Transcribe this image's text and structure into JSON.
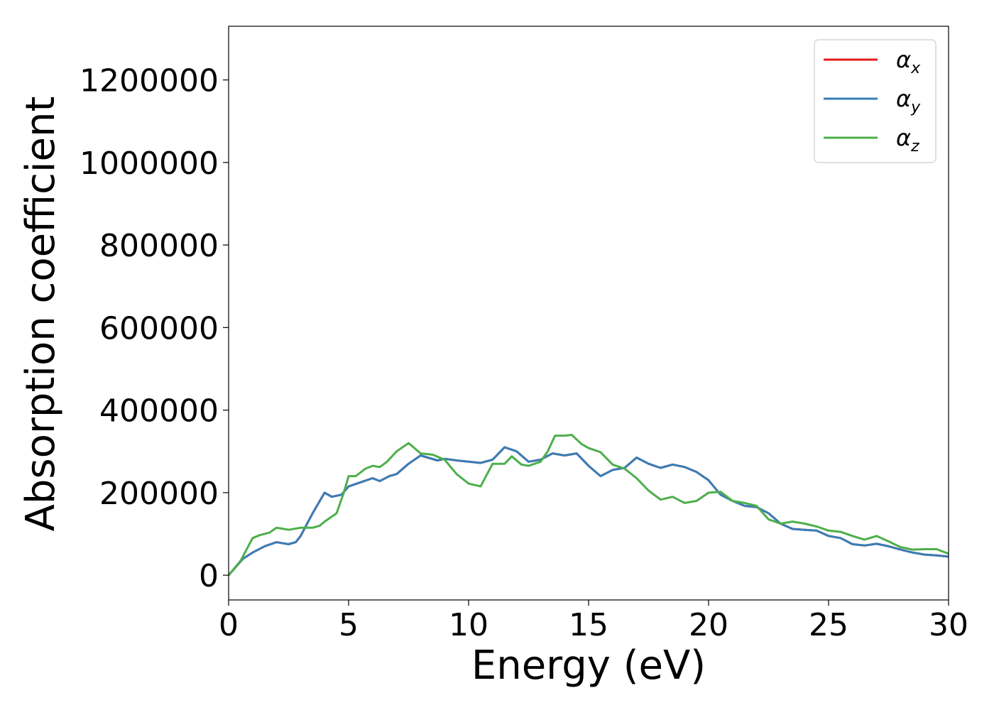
{
  "chart_data": {
    "type": "line",
    "xlabel": "Energy (eV)",
    "ylabel": "Absorption coefficient",
    "xlim": [
      0,
      30
    ],
    "ylim": [
      -60000,
      1330000
    ],
    "xticks": [
      0,
      5,
      10,
      15,
      20,
      25,
      30
    ],
    "yticks": [
      0,
      200000,
      400000,
      600000,
      800000,
      1000000,
      1200000
    ],
    "xtick_labels": [
      "0",
      "5",
      "10",
      "15",
      "20",
      "25",
      "30"
    ],
    "ytick_labels": [
      "0",
      "200000",
      "400000",
      "600000",
      "800000",
      "1000000",
      "1200000"
    ],
    "grid": false,
    "legend_position": "top-right",
    "series": [
      {
        "name": "αx",
        "symbol": "α",
        "sub": "x",
        "color": "#e41a1c",
        "x": [
          0,
          0.3,
          0.6,
          1.0,
          1.5,
          2.0,
          2.2,
          2.5,
          2.8,
          3.0,
          3.5,
          4.0,
          4.3,
          4.7,
          5.0,
          5.5,
          6.0,
          6.3,
          6.7,
          7.0,
          7.5,
          8.0,
          8.3,
          8.7,
          9.0,
          9.5,
          10.0,
          10.5,
          11.0,
          11.5,
          12.0,
          12.5,
          13.0,
          13.5,
          14.0,
          14.5,
          15.0,
          15.5,
          16.0,
          16.5,
          17.0,
          17.5,
          18.0,
          18.5,
          19.0,
          19.5,
          20.0,
          20.5,
          21.0,
          21.5,
          22.0,
          22.5,
          23.0,
          23.5,
          24.0,
          24.5,
          25.0,
          25.5,
          26.0,
          26.5,
          27.0,
          27.5,
          28.0,
          28.5,
          29.0,
          29.5,
          30.0
        ],
        "y": [
          0,
          20000,
          40000,
          55000,
          70000,
          80000,
          78000,
          75000,
          80000,
          95000,
          150000,
          200000,
          190000,
          195000,
          215000,
          225000,
          235000,
          228000,
          240000,
          245000,
          270000,
          290000,
          285000,
          278000,
          282000,
          278000,
          275000,
          272000,
          280000,
          310000,
          300000,
          275000,
          280000,
          295000,
          290000,
          295000,
          265000,
          240000,
          255000,
          260000,
          285000,
          270000,
          260000,
          268000,
          262000,
          250000,
          230000,
          195000,
          180000,
          168000,
          165000,
          150000,
          125000,
          112000,
          110000,
          108000,
          95000,
          90000,
          75000,
          72000,
          76000,
          70000,
          62000,
          55000,
          50000,
          48000,
          45000
        ]
      },
      {
        "name": "αy",
        "symbol": "α",
        "sub": "y",
        "color": "#377eb8",
        "x": [
          0,
          0.3,
          0.6,
          1.0,
          1.5,
          2.0,
          2.2,
          2.5,
          2.8,
          3.0,
          3.5,
          4.0,
          4.3,
          4.7,
          5.0,
          5.5,
          6.0,
          6.3,
          6.7,
          7.0,
          7.5,
          8.0,
          8.3,
          8.7,
          9.0,
          9.5,
          10.0,
          10.5,
          11.0,
          11.5,
          12.0,
          12.5,
          13.0,
          13.5,
          14.0,
          14.5,
          15.0,
          15.5,
          16.0,
          16.5,
          17.0,
          17.5,
          18.0,
          18.5,
          19.0,
          19.5,
          20.0,
          20.5,
          21.0,
          21.5,
          22.0,
          22.5,
          23.0,
          23.5,
          24.0,
          24.5,
          25.0,
          25.5,
          26.0,
          26.5,
          27.0,
          27.5,
          28.0,
          28.5,
          29.0,
          29.5,
          30.0
        ],
        "y": [
          0,
          20000,
          40000,
          55000,
          70000,
          80000,
          78000,
          75000,
          80000,
          95000,
          150000,
          200000,
          190000,
          195000,
          215000,
          225000,
          235000,
          228000,
          240000,
          245000,
          270000,
          290000,
          285000,
          278000,
          282000,
          278000,
          275000,
          272000,
          280000,
          310000,
          300000,
          275000,
          280000,
          295000,
          290000,
          295000,
          265000,
          240000,
          255000,
          260000,
          285000,
          270000,
          260000,
          268000,
          262000,
          250000,
          230000,
          195000,
          180000,
          168000,
          165000,
          150000,
          125000,
          112000,
          110000,
          108000,
          95000,
          90000,
          75000,
          72000,
          76000,
          70000,
          62000,
          55000,
          50000,
          48000,
          45000
        ]
      },
      {
        "name": "αz",
        "symbol": "α",
        "sub": "z",
        "color": "#4daf4a",
        "x": [
          0,
          0.5,
          1.0,
          1.3,
          1.7,
          2.0,
          2.2,
          2.5,
          3.0,
          3.5,
          3.8,
          4.0,
          4.5,
          4.8,
          5.0,
          5.3,
          5.7,
          6.0,
          6.3,
          6.6,
          7.0,
          7.5,
          7.8,
          8.0,
          8.5,
          9.0,
          9.5,
          10.0,
          10.5,
          11.0,
          11.5,
          11.8,
          12.2,
          12.5,
          13.0,
          13.3,
          13.6,
          14.0,
          14.3,
          14.7,
          15.0,
          15.5,
          16.0,
          16.5,
          17.0,
          17.5,
          18.0,
          18.5,
          19.0,
          19.5,
          20.0,
          20.5,
          21.0,
          21.5,
          22.0,
          22.5,
          23.0,
          23.5,
          24.0,
          24.5,
          25.0,
          25.5,
          26.0,
          26.5,
          27.0,
          27.5,
          28.0,
          28.5,
          29.0,
          29.5,
          30.0
        ],
        "y": [
          0,
          35000,
          90000,
          97000,
          103000,
          115000,
          113000,
          110000,
          115000,
          115000,
          120000,
          130000,
          150000,
          200000,
          240000,
          240000,
          258000,
          265000,
          262000,
          275000,
          300000,
          320000,
          305000,
          295000,
          292000,
          280000,
          245000,
          222000,
          215000,
          270000,
          270000,
          288000,
          268000,
          265000,
          275000,
          300000,
          338000,
          338000,
          340000,
          318000,
          308000,
          298000,
          268000,
          258000,
          235000,
          205000,
          183000,
          190000,
          175000,
          180000,
          200000,
          202000,
          180000,
          175000,
          168000,
          135000,
          125000,
          130000,
          125000,
          118000,
          108000,
          105000,
          95000,
          86000,
          95000,
          82000,
          68000,
          62000,
          63000,
          63000,
          52000
        ]
      }
    ]
  }
}
